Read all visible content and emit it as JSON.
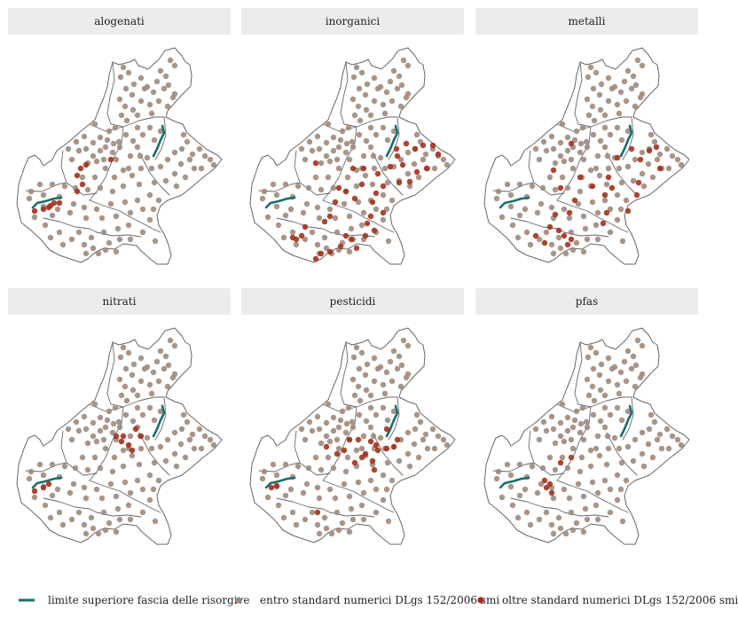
{
  "figure": {
    "panels": [
      {
        "title": "alogenati",
        "exceed_key": "alogenati"
      },
      {
        "title": "inorganici",
        "exceed_key": "inorganici"
      },
      {
        "title": "metalli",
        "exceed_key": "metalli"
      },
      {
        "title": "nitrati",
        "exceed_key": "nitrati"
      },
      {
        "title": "pesticidi",
        "exceed_key": "pesticidi"
      },
      {
        "title": "pfas",
        "exceed_key": "pfas"
      }
    ]
  },
  "legend": {
    "line_label": "limite superiore fascia delle risorgive",
    "within_label": "entro standard numerici DLgs 152/2006 smi",
    "over_label": "oltre standard numerici DLgs 152/2006 smi"
  },
  "colors": {
    "line": "#1a6e6c",
    "within": "#9f8a7c",
    "over": "#a3301c",
    "border": "#666666",
    "strip": "#ececec"
  }
}
